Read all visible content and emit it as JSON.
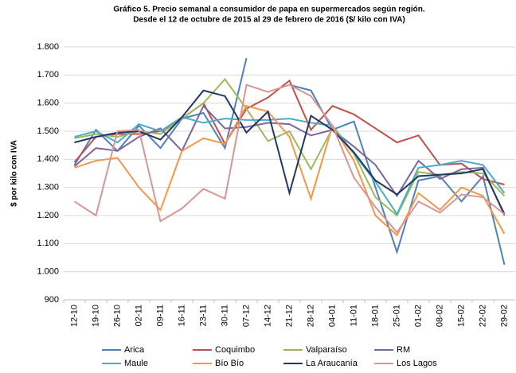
{
  "chart_data": {
    "type": "line",
    "title": "Gráfico 5. Precio semanal a consumidor de papa en supermercados según región.",
    "subtitle": "Desde el 12 de octubre de 2015 al 29 de febrero de 2016 ($/ kilo con IVA)",
    "y_label": "$ por kilo con IVA",
    "categories": [
      "12-10",
      "19-10",
      "26-10",
      "02-11",
      "09-11",
      "16-11",
      "23-11",
      "30-11",
      "07-12",
      "14-12",
      "21-12",
      "28-12",
      "04-01",
      "11-01",
      "18-01",
      "25-01",
      "01-02",
      "08-02",
      "15-02",
      "22-02",
      "29-02"
    ],
    "ylim": [
      900,
      1800
    ],
    "yticks": [
      900,
      {
        "value": 1000,
        "label": "1.000"
      },
      {
        "value": 1100,
        "label": "1.100"
      },
      {
        "value": 1200,
        "label": "1.200"
      },
      {
        "value": 1300,
        "label": "1.300"
      },
      {
        "value": 1400,
        "label": "1.400"
      },
      {
        "value": 1500,
        "label": "1.500"
      },
      {
        "value": 1600,
        "label": "1.600"
      },
      {
        "value": 1700,
        "label": "1.700"
      },
      {
        "value": 1800,
        "label": "1.800"
      }
    ],
    "grid": true,
    "series": [
      {
        "name": "Arica",
        "color": "#4f81bd",
        "values": [
          1380,
          1505,
          1430,
          1520,
          1440,
          1545,
          1565,
          1440,
          1760,
          null,
          1665,
          1645,
          1505,
          1535,
          1300,
          1070,
          1325,
          1340,
          1250,
          1340,
          1025
        ]
      },
      {
        "name": "Coquimbo",
        "color": "#c0504d",
        "values": [
          1390,
          1480,
          1490,
          1490,
          1500,
          1545,
          1600,
          1455,
          1580,
          1620,
          1680,
          1505,
          1590,
          1560,
          1510,
          1460,
          1485,
          1380,
          1385,
          1330,
          1310
        ]
      },
      {
        "name": "Valparaíso",
        "color": "#9bbb59",
        "values": [
          1475,
          1490,
          1480,
          1500,
          1490,
          1545,
          1600,
          1685,
          1580,
          1465,
          1500,
          1365,
          1510,
          1420,
          1265,
          1200,
          1355,
          1345,
          1355,
          1350,
          1270
        ]
      },
      {
        "name": "RM",
        "color": "#8064a2",
        "values": [
          1375,
          1440,
          1430,
          1480,
          1510,
          1430,
          1590,
          1510,
          1515,
          1530,
          1525,
          1485,
          1505,
          1445,
          1380,
          1270,
          1395,
          1330,
          1365,
          1370,
          1200
        ]
      },
      {
        "name": "Maule",
        "color": "#4bacc6",
        "values": [
          1480,
          1500,
          1460,
          1525,
          1500,
          1550,
          1530,
          1545,
          1540,
          1540,
          1545,
          1530,
          1520,
          1420,
          1320,
          1205,
          1370,
          1380,
          1395,
          1380,
          1280
        ]
      },
      {
        "name": "Bío Bío",
        "color": "#f79646",
        "values": [
          1370,
          1395,
          1405,
          1300,
          1220,
          1430,
          1475,
          1455,
          1590,
          1570,
          1480,
          1260,
          1520,
          1395,
          1200,
          1130,
          1280,
          1220,
          1300,
          1270,
          1135
        ]
      },
      {
        "name": "La Araucanía",
        "color": "#1f3864",
        "values": [
          1460,
          1480,
          1495,
          1500,
          1470,
          1550,
          1645,
          1625,
          1495,
          1570,
          1280,
          1555,
          1505,
          1425,
          1325,
          1275,
          1340,
          1345,
          1350,
          1365,
          1205
        ]
      },
      {
        "name": "Los Lagos",
        "color": "#d99694",
        "values": [
          1250,
          1200,
          1500,
          1505,
          1180,
          1225,
          1295,
          1260,
          1665,
          1640,
          1665,
          1625,
          1520,
          1335,
          1230,
          1140,
          1250,
          1210,
          1275,
          1265,
          1205
        ]
      }
    ]
  }
}
